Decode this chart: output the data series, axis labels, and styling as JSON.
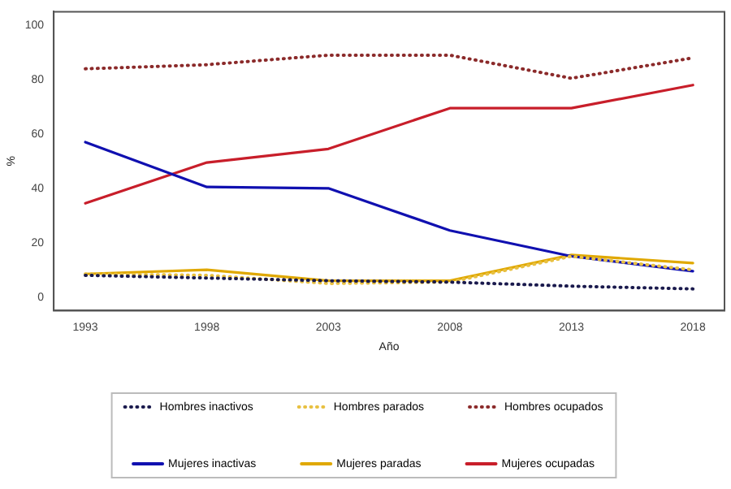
{
  "chart_data": {
    "type": "line",
    "xlabel": "Año",
    "ylabel": "%",
    "x": [
      1993,
      1998,
      2003,
      2008,
      2013,
      2018
    ],
    "xlim": [
      1991.7,
      2019.3
    ],
    "xticks": [
      1993,
      1998,
      2003,
      2008,
      2013,
      2018
    ],
    "ylim": [
      -5,
      105
    ],
    "yticks": [
      0,
      20,
      40,
      60,
      80,
      100
    ],
    "grid": false,
    "legend": "bottom",
    "marker": "none",
    "series": [
      {
        "name": "Hombres inactivos",
        "color": "#1a1a4d",
        "line_style": "dotted",
        "values": [
          8,
          7,
          6,
          5.5,
          4,
          3
        ]
      },
      {
        "name": "Hombres parados",
        "color": "#e8c040",
        "line_style": "dotted",
        "values": [
          8.5,
          8,
          5,
          5.5,
          15,
          10
        ]
      },
      {
        "name": "Hombres ocupados",
        "color": "#8b2a2a",
        "line_style": "dotted",
        "values": [
          84,
          85.5,
          89,
          89,
          80.5,
          88
        ]
      },
      {
        "name": "Mujeres inactivas",
        "color": "#1010b0",
        "line_style": "solid",
        "values": [
          57,
          40.5,
          40,
          24.5,
          15,
          9.5
        ]
      },
      {
        "name": "Mujeres paradas",
        "color": "#e0a800",
        "line_style": "solid",
        "values": [
          8.5,
          10,
          6,
          6,
          15.5,
          12.5
        ]
      },
      {
        "name": "Mujeres ocupadas",
        "color": "#c81e2a",
        "line_style": "solid",
        "values": [
          34.5,
          49.5,
          54.5,
          69.5,
          69.5,
          78
        ]
      }
    ]
  }
}
